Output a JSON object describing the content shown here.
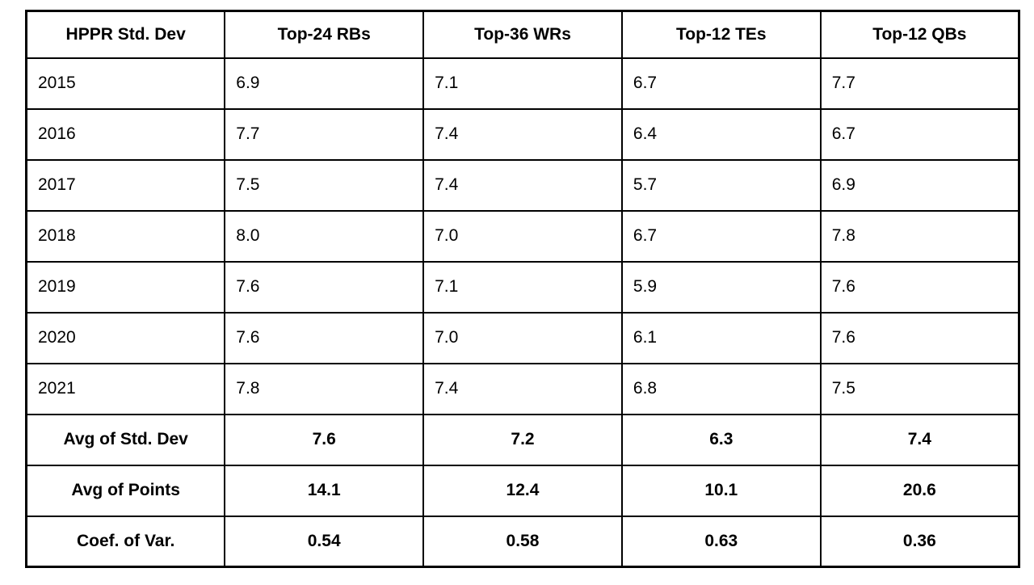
{
  "chart_data": {
    "type": "table",
    "title": "HPPR Std. Dev",
    "columns": [
      "HPPR Std. Dev",
      "Top-24 RBs",
      "Top-36 WRs",
      "Top-12 TEs",
      "Top-12 QBs"
    ],
    "rows": [
      {
        "label": "2015",
        "values": [
          "6.9",
          "7.1",
          "6.7",
          "7.7"
        ],
        "bold": false
      },
      {
        "label": "2016",
        "values": [
          "7.7",
          "7.4",
          "6.4",
          "6.7"
        ],
        "bold": false
      },
      {
        "label": "2017",
        "values": [
          "7.5",
          "7.4",
          "5.7",
          "6.9"
        ],
        "bold": false
      },
      {
        "label": "2018",
        "values": [
          "8.0",
          "7.0",
          "6.7",
          "7.8"
        ],
        "bold": false
      },
      {
        "label": "2019",
        "values": [
          "7.6",
          "7.1",
          "5.9",
          "7.6"
        ],
        "bold": false
      },
      {
        "label": "2020",
        "values": [
          "7.6",
          "7.0",
          "6.1",
          "7.6"
        ],
        "bold": false
      },
      {
        "label": "2021",
        "values": [
          "7.8",
          "7.4",
          "6.8",
          "7.5"
        ],
        "bold": false
      },
      {
        "label": "Avg of Std. Dev",
        "values": [
          "7.6",
          "7.2",
          "6.3",
          "7.4"
        ],
        "bold": true
      },
      {
        "label": "Avg of Points",
        "values": [
          "14.1",
          "12.4",
          "10.1",
          "20.6"
        ],
        "bold": true
      },
      {
        "label": "Coef. of Var.",
        "values": [
          "0.54",
          "0.58",
          "0.63",
          "0.36"
        ],
        "bold": true
      }
    ],
    "layout": {
      "grid": "all-borders",
      "header_bold": true,
      "summary_rows_bold_centered": true,
      "year_rows_left_aligned": true,
      "border_color": "#000000",
      "background_color": "#ffffff",
      "text_color": "#000000"
    }
  }
}
